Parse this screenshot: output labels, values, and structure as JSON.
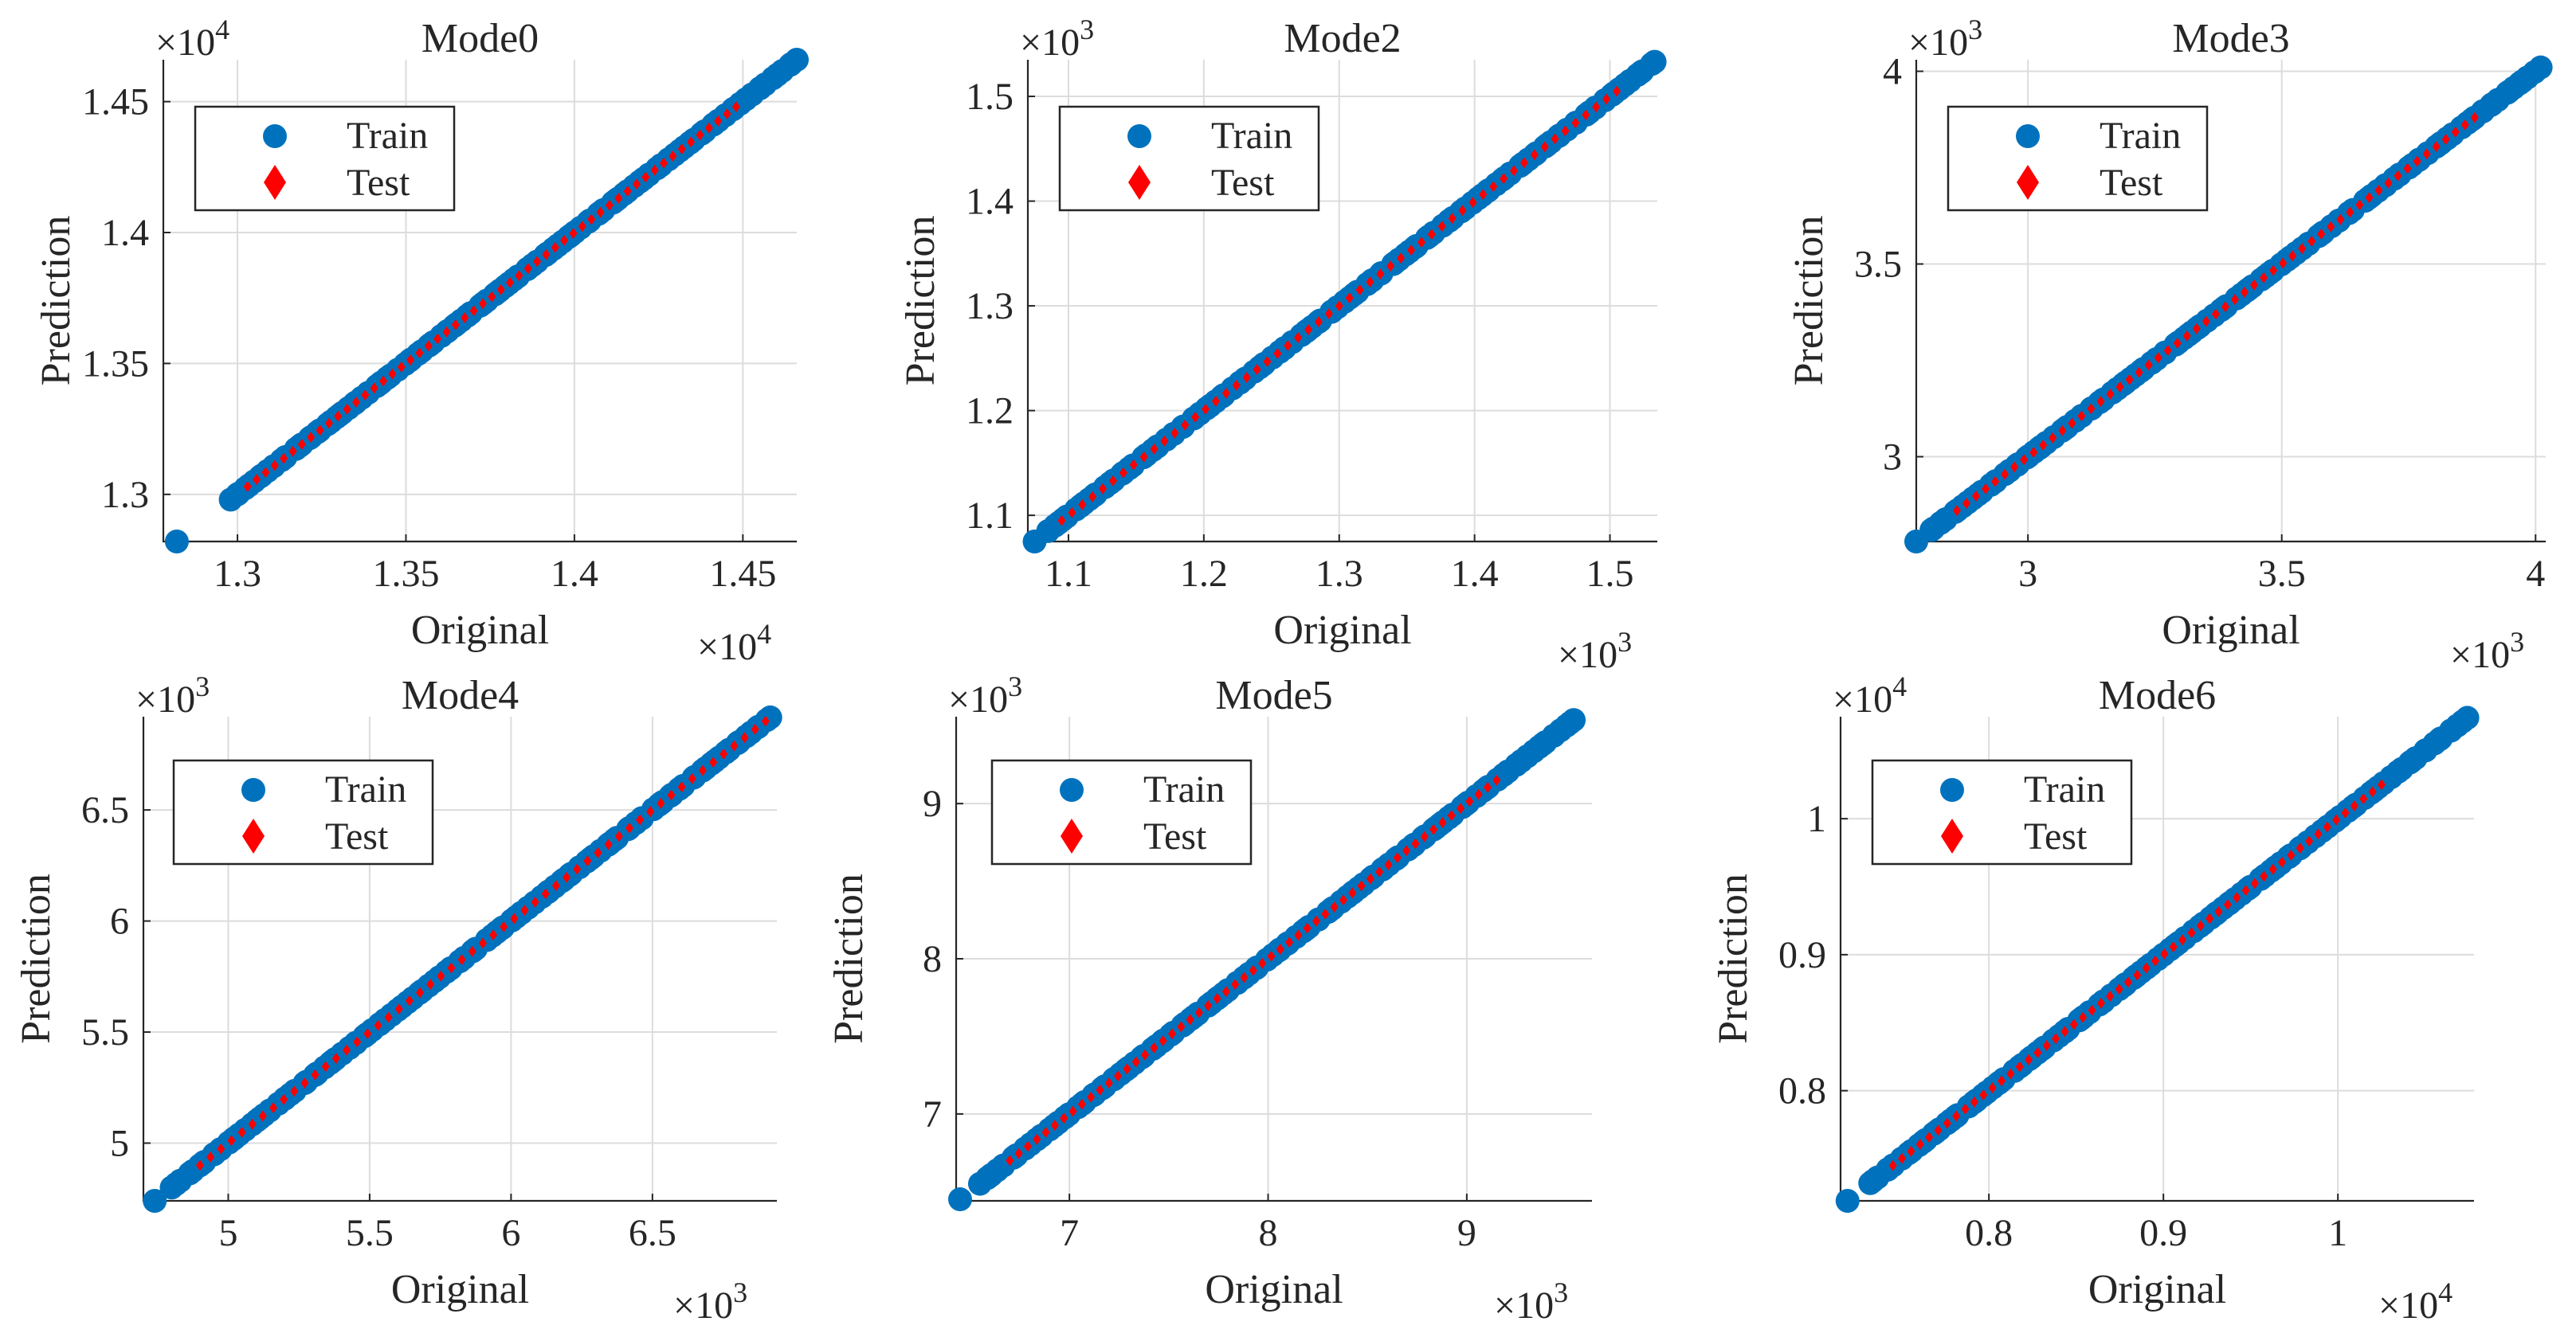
{
  "figure": {
    "ylabel": "Prediction",
    "xlabel": "Original"
  },
  "colors": {
    "train": "#0072BD",
    "test": "#FF0000",
    "grid": "#DCDCDC",
    "axis": "#262626"
  },
  "chart_data": [
    {
      "type": "scatter",
      "title": "Mode0",
      "xlabel": "Original",
      "ylabel": "Prediction",
      "xlim": [
        12780,
        14660
      ],
      "ylim": [
        12820,
        14660
      ],
      "xticks": [
        13000,
        13500,
        14000,
        14500
      ],
      "yticks": [
        13000,
        13500,
        14000,
        14500
      ],
      "xtick_labels": [
        "1.3",
        "1.35",
        "1.4",
        "1.45"
      ],
      "ytick_labels": [
        "1.3",
        "1.35",
        "1.4",
        "1.45"
      ],
      "x_exponent_base": "×10",
      "x_exponent_power": "4",
      "y_exponent_base": "×10",
      "y_exponent_power": "4",
      "legend": {
        "position": "top-left",
        "entries": [
          "Train",
          "Test"
        ]
      },
      "train": {
        "min": 12820,
        "max": 14660,
        "start": 12980
      },
      "test": {
        "min": 13030,
        "max": 14480
      }
    },
    {
      "type": "scatter",
      "title": "Mode2",
      "xlabel": "Original",
      "ylabel": "Prediction",
      "xlim": [
        1070,
        1535
      ],
      "ylim": [
        1075,
        1535
      ],
      "xticks": [
        1100,
        1200,
        1300,
        1400,
        1500
      ],
      "yticks": [
        1100,
        1200,
        1300,
        1400,
        1500
      ],
      "xtick_labels": [
        "1.1",
        "1.2",
        "1.3",
        "1.4",
        "1.5"
      ],
      "ytick_labels": [
        "1.1",
        "1.2",
        "1.3",
        "1.4",
        "1.5"
      ],
      "x_exponent_base": "×10",
      "x_exponent_power": "3",
      "y_exponent_base": "×10",
      "y_exponent_power": "3",
      "legend": {
        "position": "top-left",
        "entries": [
          "Train",
          "Test"
        ]
      },
      "train": {
        "min": 1075,
        "max": 1533,
        "start": 1085
      },
      "test": {
        "min": 1095,
        "max": 1505
      }
    },
    {
      "type": "scatter",
      "title": "Mode3",
      "xlabel": "Original",
      "ylabel": "Prediction",
      "xlim": [
        2780,
        4020
      ],
      "ylim": [
        2780,
        4030
      ],
      "xticks": [
        3000,
        3500,
        4000
      ],
      "yticks": [
        3000,
        3500,
        4000
      ],
      "xtick_labels": [
        "3",
        "3.5",
        "4"
      ],
      "ytick_labels": [
        "3",
        "3.5",
        "4"
      ],
      "x_exponent_base": "×10",
      "x_exponent_power": "3",
      "y_exponent_base": "×10",
      "y_exponent_power": "3",
      "legend": {
        "position": "top-left",
        "entries": [
          "Train",
          "Test"
        ]
      },
      "train": {
        "min": 2780,
        "max": 4010,
        "start": 2810
      },
      "test": {
        "min": 2860,
        "max": 3880
      }
    },
    {
      "type": "scatter",
      "title": "Mode4",
      "xlabel": "Original",
      "ylabel": "Prediction",
      "xlim": [
        4700,
        6940
      ],
      "ylim": [
        4740,
        6920
      ],
      "xticks": [
        5000,
        5500,
        6000,
        6500
      ],
      "yticks": [
        5000,
        5500,
        6000,
        6500
      ],
      "xtick_labels": [
        "5",
        "5.5",
        "6",
        "6.5"
      ],
      "ytick_labels": [
        "5",
        "5.5",
        "6",
        "6.5"
      ],
      "x_exponent_base": "×10",
      "x_exponent_power": "3",
      "y_exponent_base": "×10",
      "y_exponent_power": "3",
      "legend": {
        "position": "top-left",
        "entries": [
          "Train",
          "Test"
        ]
      },
      "train": {
        "min": 4740,
        "max": 6920,
        "start": 4800
      },
      "test": {
        "min": 4900,
        "max": 6900
      }
    },
    {
      "type": "scatter",
      "title": "Mode5",
      "xlabel": "Original",
      "ylabel": "Prediction",
      "xlim": [
        6430,
        9630
      ],
      "ylim": [
        6440,
        9560
      ],
      "xticks": [
        7000,
        8000,
        9000
      ],
      "yticks": [
        7000,
        8000,
        9000
      ],
      "xtick_labels": [
        "7",
        "8",
        "9"
      ],
      "ytick_labels": [
        "7",
        "8",
        "9"
      ],
      "x_exponent_base": "×10",
      "x_exponent_power": "3",
      "y_exponent_base": "×10",
      "y_exponent_power": "3",
      "legend": {
        "position": "top-left",
        "entries": [
          "Train",
          "Test"
        ]
      },
      "train": {
        "min": 6450,
        "max": 9550,
        "start": 6550
      },
      "test": {
        "min": 6700,
        "max": 9150
      }
    },
    {
      "type": "scatter",
      "title": "Mode6",
      "xlabel": "Original",
      "ylabel": "Prediction",
      "xlim": [
        7150,
        10780
      ],
      "ylim": [
        7190,
        10750
      ],
      "xticks": [
        8000,
        9000,
        10000
      ],
      "yticks": [
        8000,
        9000,
        10000
      ],
      "xtick_labels": [
        "0.8",
        "0.9",
        "1"
      ],
      "ytick_labels": [
        "0.8",
        "0.9",
        "1"
      ],
      "x_exponent_base": "×10",
      "x_exponent_power": "4",
      "y_exponent_base": "×10",
      "y_exponent_power": "4",
      "legend": {
        "position": "top-left",
        "entries": [
          "Train",
          "Test"
        ]
      },
      "train": {
        "min": 7190,
        "max": 10750,
        "start": 7320
      },
      "test": {
        "min": 7450,
        "max": 10250
      }
    }
  ]
}
